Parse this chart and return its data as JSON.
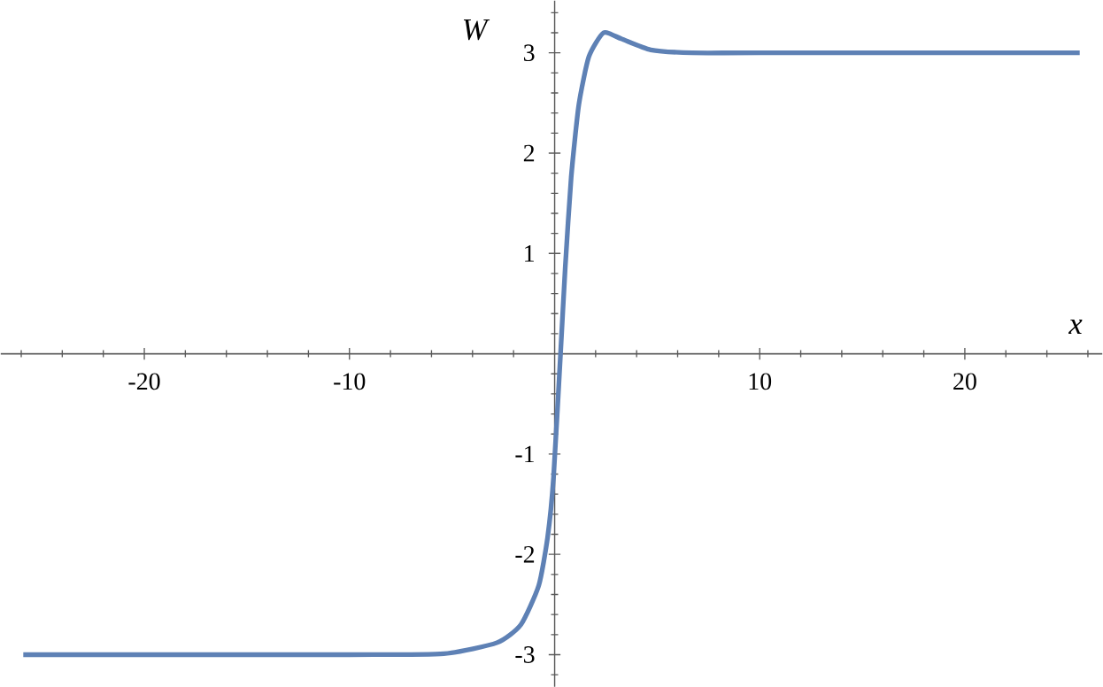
{
  "chart_data": {
    "type": "line",
    "xlabel": "x",
    "ylabel": "W",
    "x": [
      -25.9,
      -10,
      -5.4,
      -2.8,
      -1.64,
      -0.77,
      -0.34,
      -0.05,
      0.29,
      0.52,
      0.81,
      1.18,
      1.67,
      2.39,
      3.25,
      4.69,
      6.7,
      10,
      25.6
    ],
    "series": [
      {
        "color": "#5e81b5",
        "values": [
          -3,
          -3,
          -2.99,
          -2.88,
          -2.7,
          -2.31,
          -1.83,
          -1.23,
          0,
          0.86,
          1.76,
          2.48,
          2.96,
          3.2,
          3.14,
          3.03,
          3.0,
          3,
          3
        ]
      }
    ],
    "xlim": [
      -27,
      26.7
    ],
    "ylim": [
      -3.32,
      3.52
    ],
    "xticks": [
      -20,
      -10,
      10,
      20,
      {
        "value": -26,
        "label": null
      },
      {
        "value": -24,
        "label": null
      },
      {
        "value": -22,
        "label": null
      },
      {
        "value": -18,
        "label": null
      },
      {
        "value": -16,
        "label": null
      },
      {
        "value": -14,
        "label": null
      },
      {
        "value": -12,
        "label": null
      },
      {
        "value": -8,
        "label": null
      },
      {
        "value": -6,
        "label": null
      },
      {
        "value": -4,
        "label": null
      },
      {
        "value": -2,
        "label": null
      },
      {
        "value": 2,
        "label": null
      },
      {
        "value": 4,
        "label": null
      },
      {
        "value": 6,
        "label": null
      },
      {
        "value": 8,
        "label": null
      },
      {
        "value": 12,
        "label": null
      },
      {
        "value": 14,
        "label": null
      },
      {
        "value": 16,
        "label": null
      },
      {
        "value": 18,
        "label": null
      },
      {
        "value": 22,
        "label": null
      },
      {
        "value": 24,
        "label": null
      },
      {
        "value": 26,
        "label": null
      }
    ],
    "yticks": [
      -3,
      -2,
      -1,
      1,
      2,
      3,
      {
        "value": -3.2,
        "label": null
      },
      {
        "value": -2.8,
        "label": null
      },
      {
        "value": -2.6,
        "label": null
      },
      {
        "value": -2.4,
        "label": null
      },
      {
        "value": -2.2,
        "label": null
      },
      {
        "value": -1.8,
        "label": null
      },
      {
        "value": -1.6,
        "label": null
      },
      {
        "value": -1.4,
        "label": null
      },
      {
        "value": -1.2,
        "label": null
      },
      {
        "value": -0.8,
        "label": null
      },
      {
        "value": -0.6,
        "label": null
      },
      {
        "value": -0.4,
        "label": null
      },
      {
        "value": -0.2,
        "label": null
      },
      {
        "value": 0.2,
        "label": null
      },
      {
        "value": 0.4,
        "label": null
      },
      {
        "value": 0.6,
        "label": null
      },
      {
        "value": 0.8,
        "label": null
      },
      {
        "value": 1.2,
        "label": null
      },
      {
        "value": 1.4,
        "label": null
      },
      {
        "value": 1.6,
        "label": null
      },
      {
        "value": 1.8,
        "label": null
      },
      {
        "value": 2.2,
        "label": null
      },
      {
        "value": 2.4,
        "label": null
      },
      {
        "value": 2.6,
        "label": null
      },
      {
        "value": 2.8,
        "label": null
      },
      {
        "value": 3.2,
        "label": null
      },
      {
        "value": 3.4,
        "label": null
      }
    ],
    "line_style": "solid"
  }
}
